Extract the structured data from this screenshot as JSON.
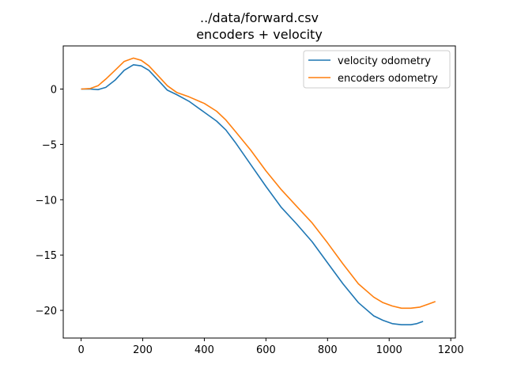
{
  "chart_data": {
    "type": "line",
    "title": "../data/forward.csv",
    "subtitle": "encoders + velocity",
    "xlabel": "",
    "ylabel": "",
    "xlim": [
      -58,
      1215
    ],
    "ylim": [
      -22.5,
      3.9
    ],
    "xticks": [
      0,
      200,
      400,
      600,
      800,
      1000,
      1200
    ],
    "yticks": [
      0,
      -5,
      -10,
      -15,
      -20
    ],
    "ytick_labels": [
      "0",
      "−5",
      "−10",
      "−15",
      "−20"
    ],
    "grid": false,
    "legend_position": "upper right",
    "series": [
      {
        "name": "velocity odometry",
        "color": "#1f77b4",
        "x": [
          0,
          30,
          55,
          80,
          110,
          140,
          170,
          195,
          220,
          250,
          280,
          310,
          350,
          400,
          440,
          470,
          500,
          550,
          600,
          650,
          700,
          750,
          800,
          850,
          900,
          950,
          980,
          1010,
          1040,
          1070,
          1090,
          1110
        ],
        "y": [
          0,
          0,
          -0.05,
          0.15,
          0.8,
          1.7,
          2.2,
          2.1,
          1.7,
          0.8,
          -0.1,
          -0.5,
          -1.1,
          -2.1,
          -2.9,
          -3.7,
          -4.8,
          -6.8,
          -8.8,
          -10.7,
          -12.2,
          -13.8,
          -15.7,
          -17.6,
          -19.3,
          -20.5,
          -20.9,
          -21.2,
          -21.3,
          -21.3,
          -21.2,
          -21.0
        ]
      },
      {
        "name": "encoders odometry",
        "color": "#ff7f0e",
        "x": [
          0,
          30,
          55,
          80,
          110,
          140,
          170,
          195,
          220,
          250,
          280,
          310,
          350,
          400,
          440,
          470,
          500,
          550,
          600,
          650,
          700,
          750,
          800,
          850,
          900,
          950,
          980,
          1010,
          1040,
          1070,
          1100,
          1130,
          1150
        ],
        "y": [
          0,
          0.05,
          0.3,
          0.9,
          1.7,
          2.5,
          2.8,
          2.6,
          2.1,
          1.2,
          0.3,
          -0.3,
          -0.7,
          -1.3,
          -2.0,
          -2.8,
          -3.8,
          -5.5,
          -7.4,
          -9.1,
          -10.6,
          -12.1,
          -13.9,
          -15.8,
          -17.6,
          -18.8,
          -19.3,
          -19.6,
          -19.8,
          -19.8,
          -19.7,
          -19.4,
          -19.2
        ]
      }
    ]
  }
}
